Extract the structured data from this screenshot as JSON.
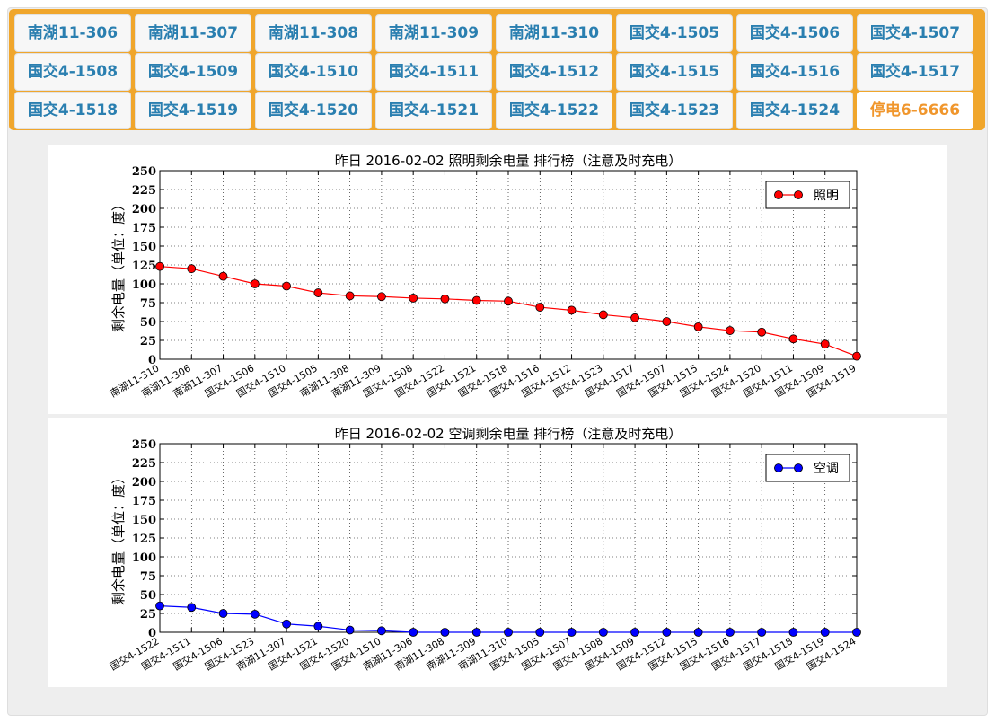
{
  "tabs": [
    {
      "label": "南湖11-306"
    },
    {
      "label": "南湖11-307"
    },
    {
      "label": "南湖11-308"
    },
    {
      "label": "南湖11-309"
    },
    {
      "label": "南湖11-310"
    },
    {
      "label": "国交4-1505"
    },
    {
      "label": "国交4-1506"
    },
    {
      "label": "国交4-1507"
    },
    {
      "label": "国交4-1508"
    },
    {
      "label": "国交4-1509"
    },
    {
      "label": "国交4-1510"
    },
    {
      "label": "国交4-1511"
    },
    {
      "label": "国交4-1512"
    },
    {
      "label": "国交4-1515"
    },
    {
      "label": "国交4-1516"
    },
    {
      "label": "国交4-1517"
    },
    {
      "label": "国交4-1518"
    },
    {
      "label": "国交4-1519"
    },
    {
      "label": "国交4-1520"
    },
    {
      "label": "国交4-1521"
    },
    {
      "label": "国交4-1522"
    },
    {
      "label": "国交4-1523"
    },
    {
      "label": "国交4-1524"
    },
    {
      "label": "停电6-6666",
      "active": true
    }
  ],
  "colors": {
    "accent": "#f0a62c",
    "tab_text": "#2a7fb0",
    "active_tab_text": "#f0962c",
    "lighting": "#ff0000",
    "ac": "#0000ff"
  },
  "chart_data": [
    {
      "type": "line",
      "title": "昨日 2016-02-02 照明剩余电量 排行榜（注意及时充电）",
      "xlabel": "",
      "ylabel": "剩余电量（单位：度）",
      "ylim": [
        0,
        250
      ],
      "yticks": [
        0,
        25,
        50,
        75,
        100,
        125,
        150,
        175,
        200,
        225,
        250
      ],
      "grid": true,
      "legend_position": "top-right",
      "categories": [
        "南湖11-310",
        "南湖11-306",
        "南湖11-307",
        "国交4-1506",
        "国交4-1510",
        "国交4-1505",
        "南湖11-308",
        "南湖11-309",
        "国交4-1508",
        "国交4-1522",
        "国交4-1521",
        "国交4-1518",
        "国交4-1516",
        "国交4-1512",
        "国交4-1523",
        "国交4-1517",
        "国交4-1507",
        "国交4-1515",
        "国交4-1524",
        "国交4-1520",
        "国交4-1511",
        "国交4-1509",
        "国交4-1519"
      ],
      "series": [
        {
          "name": "照明",
          "color": "#ff0000",
          "values": [
            123,
            120,
            110,
            100,
            97,
            88,
            84,
            83,
            81,
            80,
            78,
            77,
            69,
            65,
            59,
            55,
            50,
            43,
            38,
            36,
            27,
            20,
            4
          ]
        }
      ]
    },
    {
      "type": "line",
      "title": "昨日 2016-02-02 空调剩余电量 排行榜（注意及时充电）",
      "xlabel": "",
      "ylabel": "剩余电量（单位：度）",
      "ylim": [
        0,
        250
      ],
      "yticks": [
        0,
        25,
        50,
        75,
        100,
        125,
        150,
        175,
        200,
        225,
        250
      ],
      "grid": true,
      "legend_position": "top-right",
      "categories": [
        "国交4-1522",
        "国交4-1511",
        "国交4-1506",
        "国交4-1523",
        "南湖11-307",
        "国交4-1521",
        "国交4-1520",
        "国交4-1510",
        "南湖11-306",
        "南湖11-308",
        "南湖11-309",
        "南湖11-310",
        "国交4-1505",
        "国交4-1507",
        "国交4-1508",
        "国交4-1509",
        "国交4-1512",
        "国交4-1515",
        "国交4-1516",
        "国交4-1517",
        "国交4-1518",
        "国交4-1519",
        "国交4-1524"
      ],
      "series": [
        {
          "name": "空调",
          "color": "#0000ff",
          "values": [
            35,
            33,
            25,
            24,
            11,
            8,
            3,
            2,
            0,
            0,
            0,
            0,
            0,
            0,
            0,
            0,
            0,
            0,
            0,
            0,
            0,
            0,
            0
          ]
        }
      ]
    }
  ]
}
